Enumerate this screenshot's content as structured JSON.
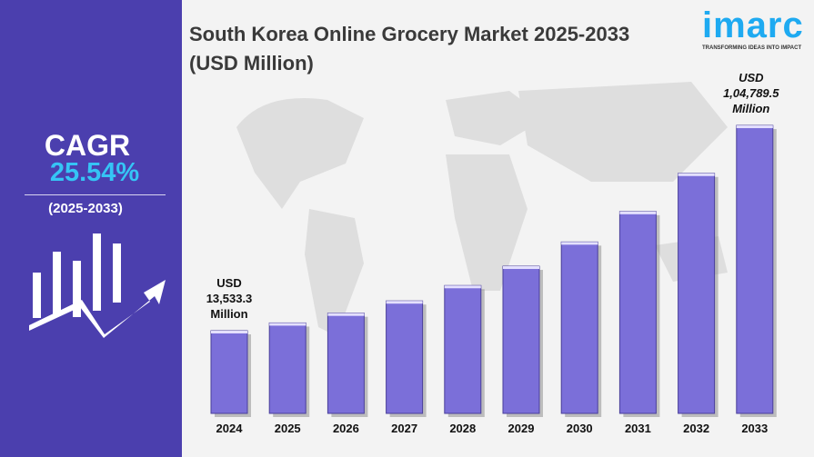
{
  "sidebar": {
    "cagr_label": "CAGR",
    "cagr_value": "25.54%",
    "period": "(2025-2033)",
    "icon": "bar-chart-growth-arrow-icon"
  },
  "logo": {
    "word": "imarc",
    "tagline": "TRANSFORMING IDEAS INTO IMPACT",
    "color": "#1eaaf1"
  },
  "colors": {
    "sidebar": "#4b3fae",
    "bar": "#7b6fd9",
    "accent": "#35c4f5"
  },
  "chart_data": {
    "type": "bar",
    "title": "South Korea Online Grocery Market 2025-2033 (USD Million)",
    "categories": [
      "2024",
      "2025",
      "2026",
      "2027",
      "2028",
      "2029",
      "2030",
      "2031",
      "2032",
      "2033"
    ],
    "values": [
      13533.3,
      16990,
      21329,
      26777,
      33615,
      42200,
      52978,
      66509,
      83496,
      104789.5
    ],
    "annotations": [
      {
        "category": "2024",
        "lines": [
          "USD",
          "13,533.3",
          "Million"
        ]
      },
      {
        "category": "2033",
        "lines": [
          "USD",
          "1,04,789.5",
          "Million"
        ]
      }
    ],
    "xlabel": "",
    "ylabel": "",
    "grid": false,
    "legend": "none"
  }
}
